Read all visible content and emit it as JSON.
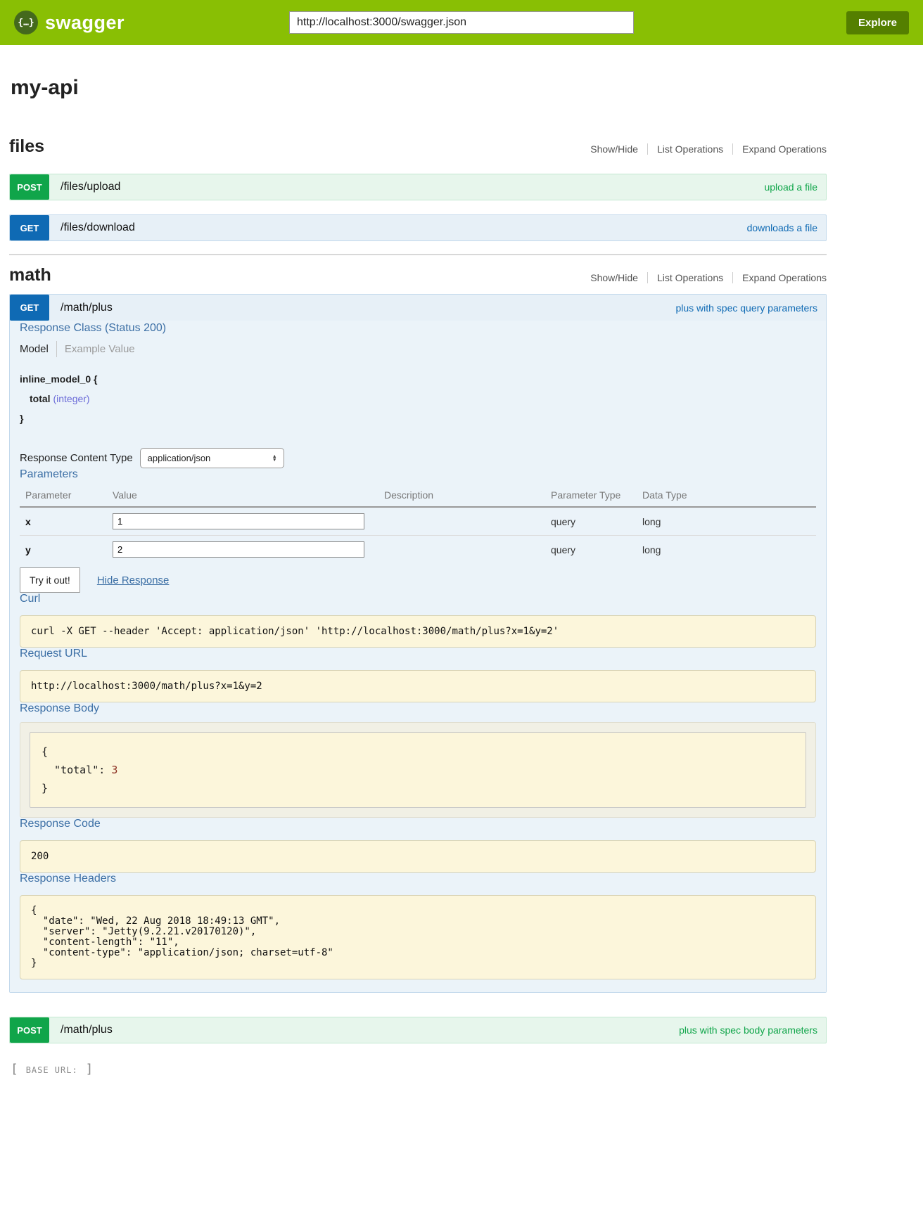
{
  "header": {
    "logo_glyph": "{…}",
    "brand": "swagger",
    "url_value": "http://localhost:3000/swagger.json",
    "explore_label": "Explore"
  },
  "page": {
    "title": "my-api"
  },
  "controls": {
    "show_hide": "Show/Hide",
    "list_operations": "List Operations",
    "expand_operations": "Expand Operations"
  },
  "files": {
    "title": "files",
    "post_upload": {
      "method": "POST",
      "path": "/files/upload",
      "summary": "upload a file"
    },
    "get_download": {
      "method": "GET",
      "path": "/files/download",
      "summary": "downloads a file"
    }
  },
  "math": {
    "title": "math",
    "get_plus": {
      "method": "GET",
      "path": "/math/plus",
      "summary": "plus with spec query parameters"
    },
    "post_plus": {
      "method": "POST",
      "path": "/math/plus",
      "summary": "plus with spec body parameters"
    }
  },
  "detail": {
    "response_class_heading": "Response Class (Status 200)",
    "tab_model": "Model",
    "tab_example": "Example Value",
    "model": {
      "open_line": "inline_model_0 {",
      "prop_name": "total",
      "prop_type": "(integer)",
      "close_line": "}"
    },
    "response_content_type": {
      "label": "Response Content Type",
      "value": "application/json"
    },
    "parameters": {
      "heading": "Parameters",
      "columns": [
        "Parameter",
        "Value",
        "Description",
        "Parameter Type",
        "Data Type"
      ],
      "rows": [
        {
          "name": "x",
          "value": "1",
          "description": "",
          "param_type": "query",
          "data_type": "long"
        },
        {
          "name": "y",
          "value": "2",
          "description": "",
          "param_type": "query",
          "data_type": "long"
        }
      ]
    },
    "try_label": "Try it out!",
    "hide_response_label": "Hide Response",
    "curl": {
      "heading": "Curl",
      "command": "curl -X GET --header 'Accept: application/json' 'http://localhost:3000/math/plus?x=1&y=2'"
    },
    "request_url": {
      "heading": "Request URL",
      "value": "http://localhost:3000/math/plus?x=1&y=2"
    },
    "response_body": {
      "heading": "Response Body",
      "open": "{",
      "key_part": "  \"total\": ",
      "num_value": "3",
      "close": "}"
    },
    "response_code": {
      "heading": "Response Code",
      "value": "200"
    },
    "response_headers": {
      "heading": "Response Headers",
      "lines": [
        "{",
        "  \"date\": \"Wed, 22 Aug 2018 18:49:13 GMT\",",
        "  \"server\": \"Jetty(9.2.21.v20170120)\",",
        "  \"content-length\": \"11\",",
        "  \"content-type\": \"application/json; charset=utf-8\"",
        "}"
      ]
    }
  },
  "icons": {
    "arrow_up": "▲",
    "arrow_down": "▼"
  },
  "footer": {
    "open_bracket": "[ ",
    "label": "BASE URL:",
    "close_bracket": " ]"
  },
  "colors": {
    "header_green": "#89bf04",
    "explore_green": "#547f00",
    "get_blue": "#0f6ab4",
    "post_green": "#10a54a",
    "panel_bg": "#ebf3f9",
    "get_row_bg": "#e7f0f7",
    "post_row_bg": "#e7f6ec",
    "code_bg": "#fcf6db",
    "heading_blue": "#3c6fa5",
    "prop_type": "#6b6bd8"
  }
}
